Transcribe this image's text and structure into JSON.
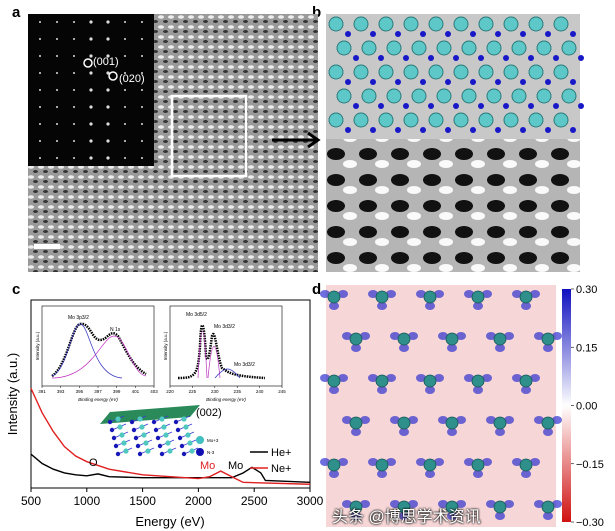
{
  "panels": {
    "a": {
      "label": "a",
      "spots": [
        "(001)",
        "(020)"
      ]
    },
    "b": {
      "label": "b"
    },
    "c": {
      "label": "c"
    },
    "d": {
      "label": "d"
    }
  },
  "chart_data": [
    {
      "type": "line",
      "xlabel": "Energy (eV)",
      "ylabel": "Intensity (a.u.)",
      "xlim": [
        500,
        3000
      ],
      "xticks": [
        "500",
        "1000",
        "1500",
        "2000",
        "2500",
        "3000"
      ],
      "series": [
        {
          "name": "He+",
          "color": "#000000",
          "x": [
            500,
            600,
            700,
            800,
            900,
            1000,
            1100,
            1200,
            1500,
            2000,
            2300,
            2400,
            2480,
            2560,
            2600,
            3000
          ],
          "y": [
            0.18,
            0.13,
            0.1,
            0.08,
            0.07,
            0.065,
            0.075,
            0.06,
            0.055,
            0.055,
            0.055,
            0.08,
            0.11,
            0.08,
            0.04,
            0.03
          ]
        },
        {
          "name": "Ne+",
          "color": "#e02020",
          "x": [
            500,
            600,
            700,
            800,
            900,
            1000,
            1200,
            1500,
            2000,
            2100,
            2200,
            2300,
            2400,
            3000
          ],
          "y": [
            0.53,
            0.4,
            0.3,
            0.22,
            0.17,
            0.14,
            0.1,
            0.07,
            0.05,
            0.06,
            0.09,
            0.06,
            0.03,
            0.02
          ]
        }
      ],
      "annotations": [
        {
          "text": "O",
          "color": "#000000"
        },
        {
          "text": "Mo",
          "color": "#e02020"
        },
        {
          "text": "Mo",
          "color": "#000000"
        },
        {
          "text": "(002)",
          "color": "#000000"
        }
      ],
      "structure_legend": [
        "Mo+3",
        "N-3"
      ]
    },
    {
      "type": "line",
      "xlabel": "Binding energy (eV)",
      "ylabel": "Intensity (a.u.)",
      "xticks": [
        "391",
        "393",
        "395",
        "397",
        "399",
        "401",
        "403"
      ],
      "peaks": [
        "Mo 3p3/2",
        "N 1s"
      ]
    },
    {
      "type": "line",
      "xlabel": "Binding energy (eV)",
      "ylabel": "Intensity (a.u.)",
      "xticks": [
        "220",
        "225",
        "230",
        "235",
        "240",
        "245"
      ],
      "peaks": [
        "Mo 3d5/2",
        "Mo 3d3/2",
        "Mo 3d3/2"
      ]
    },
    {
      "type": "heatmap",
      "colorbar_ticks": [
        "0.30",
        "0.15",
        "0.00",
        "−0.15",
        "−0.30"
      ],
      "colorscale": [
        "#1010c0",
        "#ffffff",
        "#d01010"
      ]
    }
  ],
  "watermark": "头条 @博思学术资讯"
}
